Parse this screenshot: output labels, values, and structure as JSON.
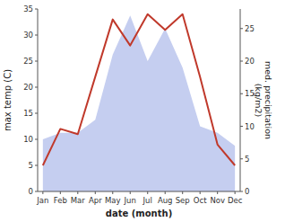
{
  "chart_data": {
    "type": "line",
    "categories": [
      "Jan",
      "Feb",
      "Mar",
      "Apr",
      "May",
      "Jun",
      "Jul",
      "Aug",
      "Sep",
      "Oct",
      "Nov",
      "Dec"
    ],
    "series": [
      {
        "type": "area",
        "axis": "y2",
        "color": "#c5cef0",
        "values": [
          8,
          9,
          9,
          11,
          21,
          27,
          20,
          25,
          19,
          10,
          9,
          7
        ]
      },
      {
        "type": "line",
        "color": "#c0392b",
        "values": [
          5,
          12,
          11,
          22,
          33,
          28,
          34,
          31,
          34,
          22,
          9,
          5
        ]
      }
    ],
    "xlabel": "date (month)",
    "ylabel": "max temp (C)",
    "y2label": "med. precipitation\n(kg/m2)",
    "ylim": [
      0,
      35
    ],
    "yticks": [
      0,
      5,
      10,
      15,
      20,
      25,
      30,
      35
    ],
    "y2lim": [
      0,
      28
    ],
    "y2ticks": [
      0,
      5,
      10,
      15,
      20,
      25
    ],
    "grid": false
  }
}
